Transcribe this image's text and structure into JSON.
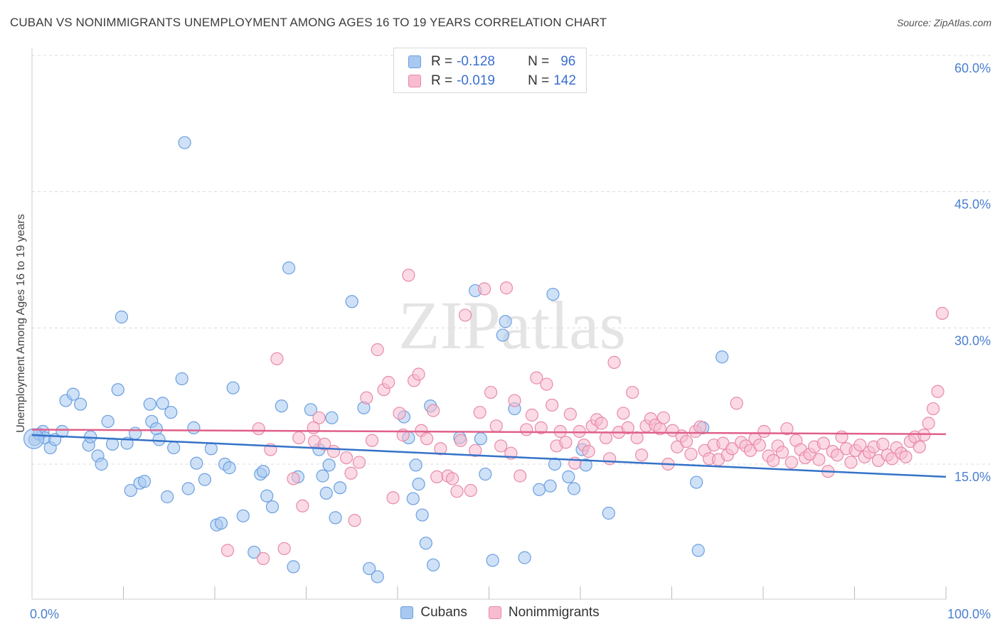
{
  "header": {
    "title": "CUBAN VS NONIMMIGRANTS UNEMPLOYMENT AMONG AGES 16 TO 19 YEARS CORRELATION CHART",
    "source": "Source: ZipAtlas.com"
  },
  "watermark": "ZIPatlas",
  "legend": {
    "rows": [
      {
        "r_label": "R =",
        "r_value": "-0.128",
        "n_label": "N =",
        "n_value": "96",
        "color": "#a8c8f0",
        "border": "#6a9fe0"
      },
      {
        "r_label": "R =",
        "r_value": "-0.019",
        "n_label": "N =",
        "n_value": "142",
        "color": "#f7bcd0",
        "border": "#e88aa8"
      }
    ]
  },
  "bottom_legend": [
    {
      "label": "Cubans",
      "color": "#a8c8f0",
      "border": "#6a9fe0"
    },
    {
      "label": "Nonimmigrants",
      "color": "#f7bcd0",
      "border": "#e88aa8"
    }
  ],
  "chart_data": {
    "type": "scatter",
    "ylabel": "Unemployment Among Ages 16 to 19 years",
    "xlim": [
      0,
      100
    ],
    "ylim": [
      0,
      60
    ],
    "x_tick_labels": [
      "0.0%",
      "100.0%"
    ],
    "y_ticks": [
      15,
      30,
      45,
      60
    ],
    "y_tick_labels": [
      "15.0%",
      "30.0%",
      "45.0%",
      "60.0%"
    ],
    "grid": "horizontal dashed",
    "legend_position": "top-center",
    "series": [
      {
        "name": "Cubans",
        "color": "#6a9fe0",
        "fill": "#a8c8f0",
        "trend": {
          "x": [
            0,
            100
          ],
          "y": [
            18.2,
            13.6
          ]
        },
        "points": [
          [
            0.3,
            17.7
          ],
          [
            0.8,
            18.3
          ],
          [
            1.2,
            18.6
          ],
          [
            1.4,
            17.9
          ],
          [
            2.0,
            16.8
          ],
          [
            2.5,
            17.7
          ],
          [
            3.3,
            18.6
          ],
          [
            3.7,
            22.0
          ],
          [
            4.5,
            22.7
          ],
          [
            5.3,
            21.6
          ],
          [
            6.2,
            17.1
          ],
          [
            6.4,
            18.0
          ],
          [
            7.2,
            15.9
          ],
          [
            7.6,
            15.0
          ],
          [
            8.3,
            19.7
          ],
          [
            8.8,
            17.2
          ],
          [
            9.4,
            23.2
          ],
          [
            9.8,
            31.2
          ],
          [
            10.4,
            17.3
          ],
          [
            10.8,
            12.1
          ],
          [
            11.3,
            18.4
          ],
          [
            11.8,
            12.9
          ],
          [
            12.3,
            13.1
          ],
          [
            12.9,
            21.6
          ],
          [
            13.1,
            19.7
          ],
          [
            13.6,
            18.9
          ],
          [
            13.9,
            17.7
          ],
          [
            14.3,
            21.7
          ],
          [
            14.8,
            11.4
          ],
          [
            15.2,
            20.7
          ],
          [
            15.5,
            16.8
          ],
          [
            16.4,
            24.4
          ],
          [
            16.7,
            50.4
          ],
          [
            17.1,
            12.3
          ],
          [
            17.7,
            19.0
          ],
          [
            18.0,
            15.1
          ],
          [
            18.9,
            13.3
          ],
          [
            19.6,
            16.7
          ],
          [
            20.2,
            8.3
          ],
          [
            20.7,
            8.5
          ],
          [
            21.1,
            15.0
          ],
          [
            21.6,
            14.6
          ],
          [
            22.0,
            23.4
          ],
          [
            23.1,
            9.3
          ],
          [
            24.3,
            5.3
          ],
          [
            25.0,
            13.9
          ],
          [
            25.3,
            14.2
          ],
          [
            25.7,
            11.5
          ],
          [
            26.3,
            10.3
          ],
          [
            27.3,
            21.4
          ],
          [
            28.1,
            36.6
          ],
          [
            28.6,
            3.7
          ],
          [
            29.1,
            13.6
          ],
          [
            30.5,
            21.0
          ],
          [
            31.4,
            16.6
          ],
          [
            31.8,
            13.7
          ],
          [
            32.2,
            11.8
          ],
          [
            32.5,
            14.9
          ],
          [
            32.8,
            20.1
          ],
          [
            33.2,
            9.1
          ],
          [
            33.7,
            12.4
          ],
          [
            35.0,
            32.9
          ],
          [
            36.3,
            21.2
          ],
          [
            36.9,
            3.5
          ],
          [
            37.8,
            2.6
          ],
          [
            40.7,
            20.2
          ],
          [
            41.2,
            17.9
          ],
          [
            41.7,
            11.2
          ],
          [
            42.0,
            14.9
          ],
          [
            42.3,
            12.8
          ],
          [
            42.7,
            9.4
          ],
          [
            43.1,
            6.3
          ],
          [
            43.6,
            21.4
          ],
          [
            43.9,
            3.9
          ],
          [
            46.8,
            17.9
          ],
          [
            48.5,
            34.1
          ],
          [
            49.1,
            17.8
          ],
          [
            49.6,
            13.9
          ],
          [
            50.4,
            4.4
          ],
          [
            51.5,
            29.2
          ],
          [
            51.8,
            30.7
          ],
          [
            52.8,
            21.1
          ],
          [
            53.9,
            4.7
          ],
          [
            55.5,
            12.2
          ],
          [
            56.7,
            12.6
          ],
          [
            57.0,
            33.7
          ],
          [
            57.2,
            15.0
          ],
          [
            58.7,
            13.6
          ],
          [
            59.3,
            12.3
          ],
          [
            60.2,
            16.6
          ],
          [
            60.6,
            14.9
          ],
          [
            63.1,
            9.6
          ],
          [
            72.7,
            13.0
          ],
          [
            72.9,
            5.5
          ],
          [
            73.4,
            19.0
          ],
          [
            75.5,
            26.8
          ]
        ]
      },
      {
        "name": "Nonimmigrants",
        "color": "#e88aa8",
        "fill": "#f7bcd0",
        "trend": {
          "x": [
            0,
            100
          ],
          "y": [
            18.8,
            18.3
          ]
        },
        "points": [
          [
            21.4,
            5.5
          ],
          [
            24.8,
            18.9
          ],
          [
            25.3,
            4.6
          ],
          [
            26.1,
            16.6
          ],
          [
            26.8,
            26.6
          ],
          [
            27.6,
            5.7
          ],
          [
            28.6,
            13.4
          ],
          [
            29.2,
            17.9
          ],
          [
            29.6,
            10.4
          ],
          [
            30.9,
            17.5
          ],
          [
            31.4,
            20.1
          ],
          [
            33.0,
            16.4
          ],
          [
            34.4,
            15.7
          ],
          [
            34.9,
            14.0
          ],
          [
            35.3,
            8.8
          ],
          [
            35.8,
            15.2
          ],
          [
            36.6,
            22.3
          ],
          [
            37.2,
            17.6
          ],
          [
            37.8,
            27.6
          ],
          [
            38.5,
            23.2
          ],
          [
            39.0,
            24.0
          ],
          [
            39.5,
            11.3
          ],
          [
            40.2,
            20.6
          ],
          [
            40.6,
            18.2
          ],
          [
            41.2,
            35.8
          ],
          [
            41.8,
            24.2
          ],
          [
            42.3,
            24.9
          ],
          [
            42.6,
            18.7
          ],
          [
            43.2,
            17.8
          ],
          [
            43.9,
            20.9
          ],
          [
            44.3,
            13.6
          ],
          [
            44.7,
            16.7
          ],
          [
            45.5,
            13.7
          ],
          [
            46.0,
            13.4
          ],
          [
            46.5,
            12.0
          ],
          [
            46.9,
            17.6
          ],
          [
            47.4,
            31.4
          ],
          [
            48.0,
            12.1
          ],
          [
            48.5,
            16.5
          ],
          [
            49.0,
            20.7
          ],
          [
            49.5,
            34.3
          ],
          [
            50.2,
            22.9
          ],
          [
            50.8,
            19.2
          ],
          [
            51.3,
            17.0
          ],
          [
            51.9,
            34.4
          ],
          [
            52.4,
            16.2
          ],
          [
            52.8,
            22.0
          ],
          [
            53.4,
            13.7
          ],
          [
            54.1,
            18.8
          ],
          [
            54.7,
            20.4
          ],
          [
            55.2,
            24.5
          ],
          [
            55.7,
            19.0
          ],
          [
            56.3,
            23.8
          ],
          [
            56.9,
            21.5
          ],
          [
            57.4,
            17.0
          ],
          [
            57.8,
            18.6
          ],
          [
            58.4,
            17.4
          ],
          [
            58.9,
            20.5
          ],
          [
            59.4,
            15.1
          ],
          [
            59.9,
            18.6
          ],
          [
            60.4,
            17.1
          ],
          [
            60.9,
            16.4
          ],
          [
            61.3,
            19.2
          ],
          [
            61.8,
            19.9
          ],
          [
            62.3,
            19.5
          ],
          [
            62.8,
            17.9
          ],
          [
            63.2,
            15.6
          ],
          [
            63.7,
            26.2
          ],
          [
            64.2,
            18.5
          ],
          [
            64.7,
            20.6
          ],
          [
            65.2,
            19.0
          ],
          [
            65.7,
            22.9
          ],
          [
            66.2,
            17.9
          ],
          [
            66.7,
            16.0
          ],
          [
            67.2,
            19.2
          ],
          [
            67.7,
            20.0
          ],
          [
            68.2,
            19.3
          ],
          [
            68.7,
            18.9
          ],
          [
            69.1,
            20.1
          ],
          [
            69.6,
            15.0
          ],
          [
            70.1,
            18.7
          ],
          [
            70.6,
            16.9
          ],
          [
            71.1,
            18.1
          ],
          [
            71.6,
            17.5
          ],
          [
            72.1,
            16.1
          ],
          [
            72.6,
            18.6
          ],
          [
            73.1,
            19.1
          ],
          [
            73.6,
            16.5
          ],
          [
            74.1,
            15.6
          ],
          [
            74.6,
            17.1
          ],
          [
            75.1,
            15.5
          ],
          [
            75.6,
            17.3
          ],
          [
            76.1,
            16.0
          ],
          [
            76.6,
            16.7
          ],
          [
            77.1,
            21.7
          ],
          [
            77.6,
            17.4
          ],
          [
            78.1,
            17.0
          ],
          [
            78.6,
            16.5
          ],
          [
            79.1,
            17.8
          ],
          [
            79.6,
            17.1
          ],
          [
            80.1,
            18.6
          ],
          [
            80.6,
            15.9
          ],
          [
            81.1,
            15.4
          ],
          [
            81.6,
            17.0
          ],
          [
            82.1,
            16.3
          ],
          [
            82.6,
            18.9
          ],
          [
            83.1,
            15.2
          ],
          [
            83.6,
            17.6
          ],
          [
            84.1,
            16.6
          ],
          [
            84.6,
            15.7
          ],
          [
            85.1,
            16.1
          ],
          [
            85.6,
            16.9
          ],
          [
            86.1,
            15.5
          ],
          [
            86.6,
            17.3
          ],
          [
            87.1,
            14.2
          ],
          [
            87.6,
            16.4
          ],
          [
            88.1,
            16.0
          ],
          [
            88.6,
            18.0
          ],
          [
            89.1,
            16.7
          ],
          [
            89.6,
            15.2
          ],
          [
            90.1,
            16.5
          ],
          [
            90.6,
            17.1
          ],
          [
            91.1,
            15.8
          ],
          [
            91.6,
            16.3
          ],
          [
            92.1,
            16.9
          ],
          [
            92.6,
            15.4
          ],
          [
            93.1,
            17.2
          ],
          [
            93.6,
            16.0
          ],
          [
            94.1,
            15.6
          ],
          [
            94.6,
            16.8
          ],
          [
            95.1,
            16.2
          ],
          [
            95.6,
            15.8
          ],
          [
            96.1,
            17.5
          ],
          [
            96.6,
            18.0
          ],
          [
            97.1,
            16.9
          ],
          [
            97.6,
            18.2
          ],
          [
            98.1,
            19.5
          ],
          [
            98.6,
            21.1
          ],
          [
            99.1,
            23.0
          ],
          [
            99.6,
            31.6
          ],
          [
            30.8,
            19.0
          ],
          [
            32.0,
            17.2
          ]
        ]
      }
    ]
  }
}
